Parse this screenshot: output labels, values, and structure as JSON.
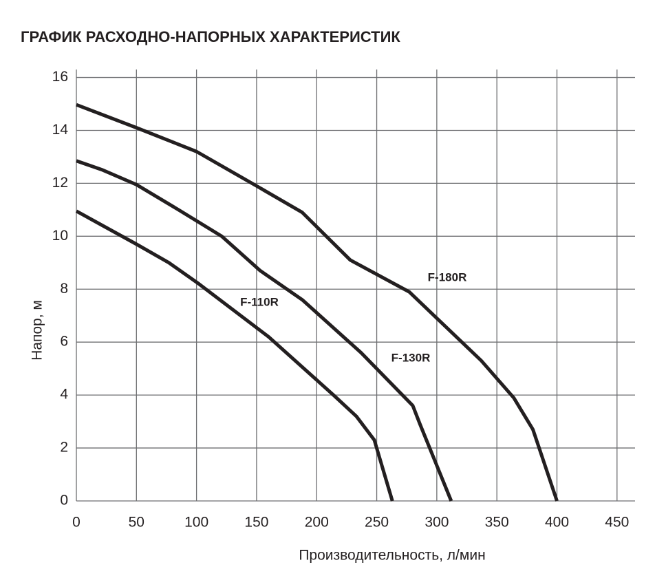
{
  "chart_data": {
    "type": "line",
    "title": "ГРАФИК РАСХОДНО-НАПОРНЫХ ХАРАКТЕРИСТИК",
    "x_label": "Производительность, л/мин",
    "y_label": "Напор, м",
    "xlim": [
      0,
      465
    ],
    "ylim": [
      0,
      16.3
    ],
    "xticks": [
      0,
      50,
      100,
      150,
      200,
      250,
      300,
      350,
      400,
      450
    ],
    "yticks": [
      0,
      2,
      4,
      6,
      8,
      10,
      12,
      14,
      16
    ],
    "grid": true,
    "series": [
      {
        "name": "F-180R",
        "color": "#231f20",
        "x": [
          0,
          50,
          100,
          150,
          188,
          228,
          277,
          337,
          364,
          380,
          400
        ],
        "values": [
          14.97,
          14.1,
          13.2,
          11.9,
          10.9,
          9.1,
          7.9,
          5.3,
          3.9,
          2.7,
          0
        ]
      },
      {
        "name": "F-130R",
        "color": "#231f20",
        "x": [
          0,
          22,
          50,
          85,
          121,
          153,
          188,
          237,
          280,
          286,
          312
        ],
        "values": [
          12.85,
          12.5,
          11.95,
          11.0,
          10.0,
          8.7,
          7.6,
          5.6,
          3.6,
          2.9,
          0
        ]
      },
      {
        "name": "F-110R",
        "color": "#231f20",
        "x": [
          0,
          50,
          77,
          102,
          160,
          214,
          233,
          248,
          263
        ],
        "values": [
          10.95,
          9.7,
          9.0,
          8.2,
          6.2,
          4.0,
          3.2,
          2.3,
          0
        ]
      }
    ]
  }
}
